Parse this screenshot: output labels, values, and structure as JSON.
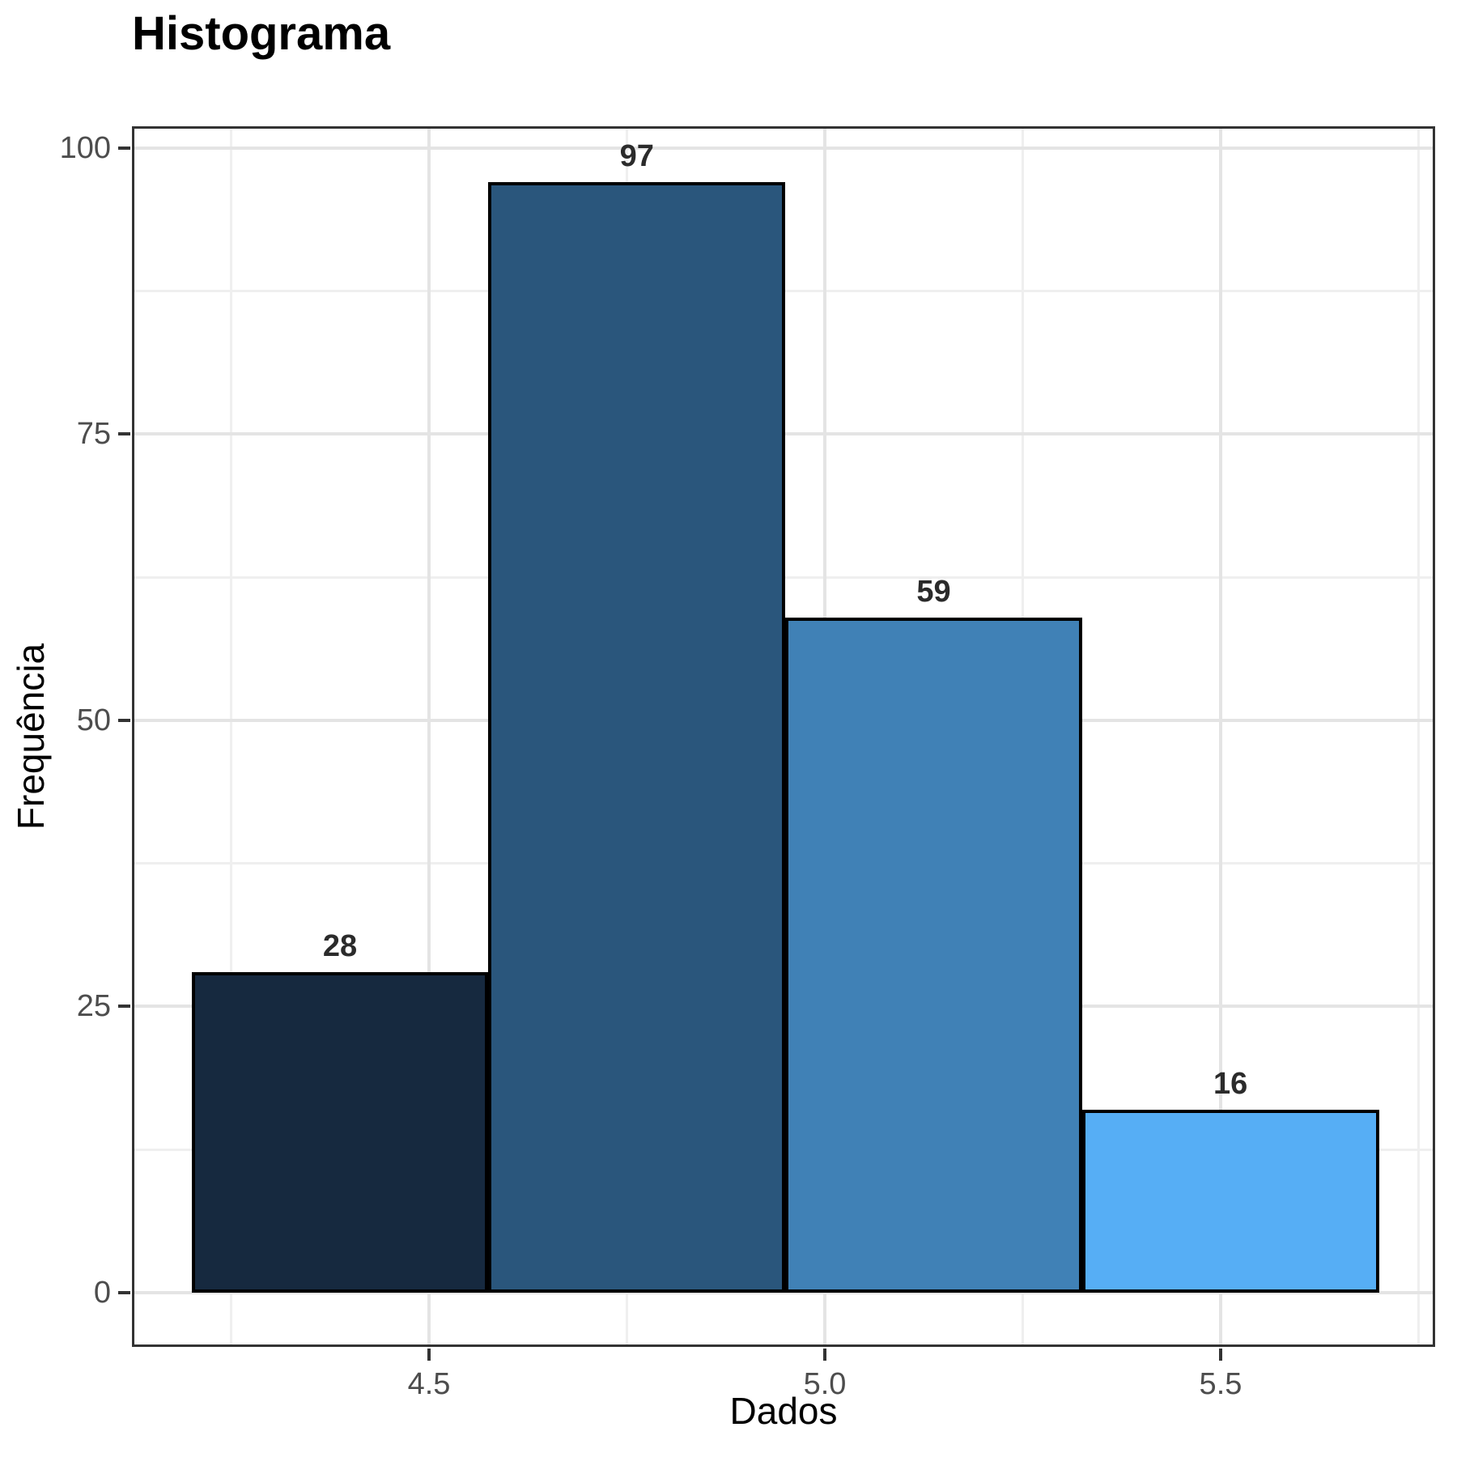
{
  "chart_data": {
    "type": "histogram",
    "title": "Histograma",
    "xlabel": "Dados",
    "ylabel": "Frequência",
    "bin_edges": [
      4.2,
      4.575,
      4.95,
      5.325,
      5.7
    ],
    "counts": [
      28,
      97,
      59,
      16
    ],
    "bar_colors": [
      "#16293F",
      "#2A567C",
      "#4081B6",
      "#56AEF5"
    ],
    "bar_border_color": "#000000",
    "x_ticks": [
      {
        "value": 4.5,
        "label": "4.5"
      },
      {
        "value": 5.0,
        "label": "5.0"
      },
      {
        "value": 5.5,
        "label": "5.5"
      }
    ],
    "x_minor_ticks": [
      4.25,
      4.75,
      5.25,
      5.75
    ],
    "y_ticks": [
      {
        "value": 0,
        "label": "0"
      },
      {
        "value": 25,
        "label": "25"
      },
      {
        "value": 50,
        "label": "50"
      },
      {
        "value": 75,
        "label": "75"
      },
      {
        "value": 100,
        "label": "100"
      }
    ],
    "y_minor_ticks": [
      12.5,
      37.5,
      62.5,
      87.5
    ],
    "xlim": [
      4.1247,
      5.771
    ],
    "ylim": [
      -4.74,
      101.91
    ],
    "grid": {
      "major_color": "#E4E4E4",
      "minor_color": "#EFEFEF",
      "grid_on": true
    },
    "legend": "none",
    "panel_border_color": "#333333",
    "tick_color": "#333333",
    "tick_label_color": "#4D4D4D",
    "text_color": "#000000",
    "background": "#FFFFFF",
    "value_label_color": "#2B2B2B"
  }
}
